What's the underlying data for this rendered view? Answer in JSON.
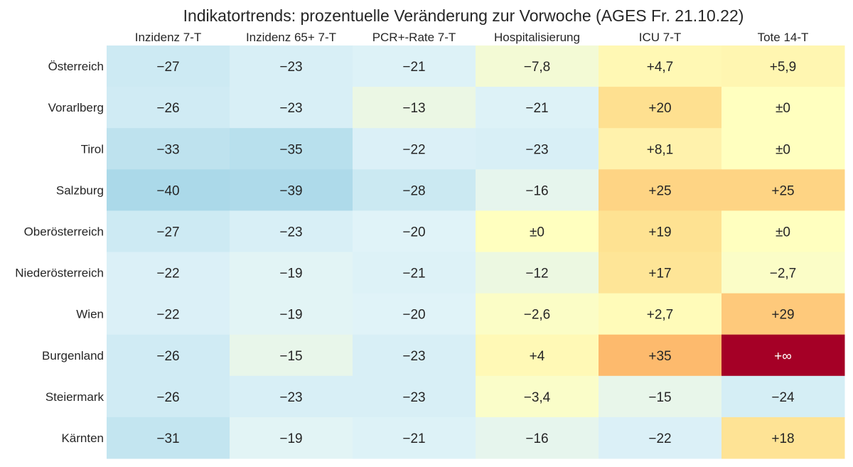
{
  "chart_data": {
    "type": "heatmap",
    "title": "Indikatortrends: prozentuelle Veränderung zur Vorwoche (AGES Fr. 21.10.22)",
    "columns": [
      "Inzidenz 7-T",
      "Inzidenz 65+ 7-T",
      "PCR+-Rate 7-T",
      "Hospitalisierung",
      "ICU 7-T",
      "Tote 14-T"
    ],
    "rows": [
      "Österreich",
      "Vorarlberg",
      "Tirol",
      "Salzburg",
      "Oberösterreich",
      "Niederösterreich",
      "Wien",
      "Burgenland",
      "Steiermark",
      "Kärnten"
    ],
    "values": [
      [
        -27,
        -23,
        -21,
        -7.8,
        4.7,
        5.9
      ],
      [
        -26,
        -23,
        -13,
        -21,
        20,
        0
      ],
      [
        -33,
        -35,
        -22,
        -23,
        8.1,
        0
      ],
      [
        -40,
        -39,
        -28,
        -16,
        25,
        25
      ],
      [
        -27,
        -23,
        -20,
        0,
        19,
        0
      ],
      [
        -22,
        -19,
        -21,
        -12,
        17,
        -2.7
      ],
      [
        -22,
        -19,
        -20,
        -2.6,
        2.7,
        29
      ],
      [
        -26,
        -15,
        -23,
        4,
        35,
        "inf"
      ],
      [
        -26,
        -23,
        -23,
        -3.4,
        -15,
        -24
      ],
      [
        -31,
        -19,
        -21,
        -16,
        -22,
        18
      ]
    ],
    "labels": [
      [
        "−27",
        "−23",
        "−21",
        "−7,8",
        "+4,7",
        "+5,9"
      ],
      [
        "−26",
        "−23",
        "−13",
        "−21",
        "+20",
        "±0"
      ],
      [
        "−33",
        "−35",
        "−22",
        "−23",
        "+8,1",
        "±0"
      ],
      [
        "−40",
        "−39",
        "−28",
        "−16",
        "+25",
        "+25"
      ],
      [
        "−27",
        "−23",
        "−20",
        "±0",
        "+19",
        "±0"
      ],
      [
        "−22",
        "−19",
        "−21",
        "−12",
        "+17",
        "−2,7"
      ],
      [
        "−22",
        "−19",
        "−20",
        "−2,6",
        "+2,7",
        "+29"
      ],
      [
        "−26",
        "−15",
        "−23",
        "+4",
        "+35",
        "+∞"
      ],
      [
        "−26",
        "−23",
        "−23",
        "−3,4",
        "−15",
        "−24"
      ],
      [
        "−31",
        "−19",
        "−21",
        "−16",
        "−22",
        "+18"
      ]
    ],
    "colormap": "RdYlBu_r",
    "color_range": [
      -100,
      100
    ]
  }
}
